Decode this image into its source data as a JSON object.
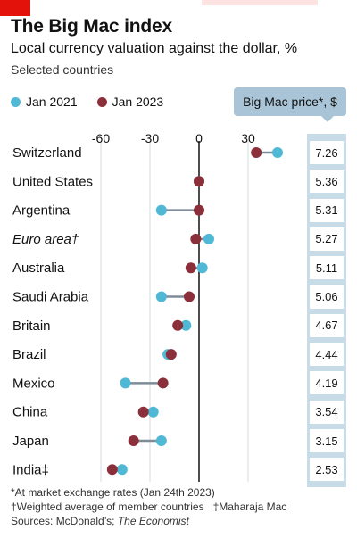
{
  "header": {
    "title": "The Big Mac index",
    "subtitle": "Local currency valuation against the dollar, %",
    "note": "Selected countries"
  },
  "legend": {
    "jan2021": "Jan 2021",
    "jan2023": "Jan 2023"
  },
  "price_header": "Big Mac price*, $",
  "colors": {
    "jan2021": "#4fb8d4",
    "jan2023": "#8b2f3a",
    "connector": "#7d8c98",
    "price_bg": "#c8dce8"
  },
  "footer": {
    "note1": "*At market exchange rates (Jan 24th 2023)",
    "note2": "†Weighted average of member countries",
    "note3": "‡Maharaja Mac",
    "sources_prefix": "Sources: McDonald’s; ",
    "sources_italic": "The Economist"
  },
  "chart_data": {
    "type": "dot",
    "xlim": [
      -60,
      60
    ],
    "xticks": [
      -60,
      -30,
      0,
      30
    ],
    "xtick_labels": [
      "-60",
      "-30",
      "0",
      "30"
    ],
    "grid": true,
    "legend_position": "top-left",
    "categories": [
      "Switzerland",
      "United States",
      "Argentina",
      "Euro area†",
      "Australia",
      "Saudi Arabia",
      "Britain",
      "Brazil",
      "Mexico",
      "China",
      "Japan",
      "India‡"
    ],
    "italic": [
      false,
      false,
      false,
      true,
      false,
      false,
      false,
      false,
      false,
      false,
      false,
      false
    ],
    "series": [
      {
        "name": "Jan 2021",
        "values": [
          48,
          0,
          -23,
          6,
          2,
          -23,
          -8,
          -19,
          -45,
          -28,
          -23,
          -47
        ]
      },
      {
        "name": "Jan 2023",
        "values": [
          35,
          0,
          0,
          -2,
          -5,
          -6,
          -13,
          -17,
          -22,
          -34,
          -40,
          -53
        ]
      }
    ],
    "price": [
      "7.26",
      "5.36",
      "5.31",
      "5.27",
      "5.11",
      "5.06",
      "4.67",
      "4.44",
      "4.19",
      "3.54",
      "3.15",
      "2.53"
    ]
  }
}
